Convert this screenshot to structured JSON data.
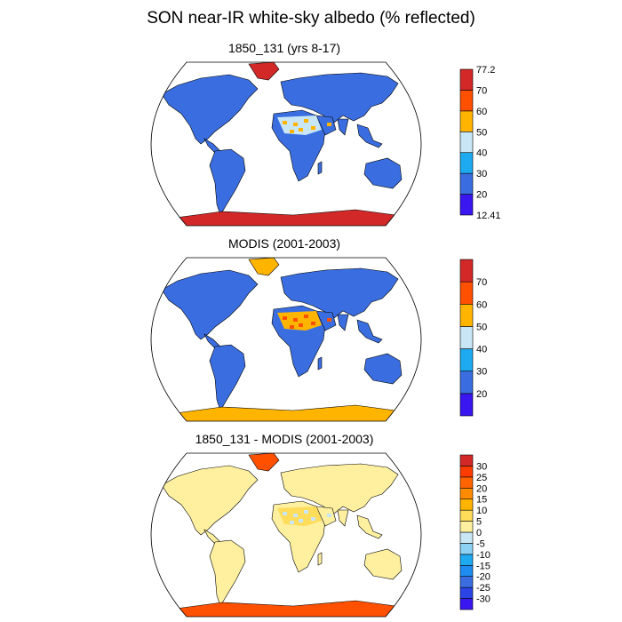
{
  "title": "SON near-IR white-sky albedo (% reflected)",
  "panels": [
    {
      "title": "1850_131 (yrs 8-17)",
      "colorbar": {
        "colors": [
          "#3a16f0",
          "#3a6ee0",
          "#1eaaf0",
          "#c8e6f5",
          "#ffb400",
          "#ff5000",
          "#d22828"
        ],
        "labels": [
          "12.41",
          "20",
          "30",
          "40",
          "50",
          "60",
          "70",
          "77.2"
        ]
      },
      "fills": {
        "land": "#3a6ee0",
        "high": "#d22828",
        "desert": "#c8e6f5",
        "desertSpots": "#ffb400"
      }
    },
    {
      "title": "MODIS (2001-2003)",
      "colorbar": {
        "colors": [
          "#3a16f0",
          "#3a6ee0",
          "#1eaaf0",
          "#c8e6f5",
          "#ffb400",
          "#ff5000",
          "#d22828"
        ],
        "labels": [
          "20",
          "30",
          "40",
          "50",
          "60",
          "70"
        ]
      },
      "fills": {
        "land": "#3a6ee0",
        "high": "#ffb400",
        "desert": "#ffb400",
        "desertSpots": "#ff5000"
      }
    },
    {
      "title": "1850_131 - MODIS (2001-2003)",
      "colorbar": {
        "colors": [
          "#3a16f0",
          "#2a44e6",
          "#3a6ee0",
          "#1e8cf0",
          "#1eaaf0",
          "#8cd2f5",
          "#c8e6f5",
          "#fff0a0",
          "#ffdc5a",
          "#ffb400",
          "#ff8c00",
          "#ff6400",
          "#ff3c00",
          "#d22828"
        ],
        "labels": [
          "-30",
          "-25",
          "-20",
          "-15",
          "-10",
          "-5",
          "0",
          "5",
          "10",
          "15",
          "20",
          "25",
          "30"
        ]
      },
      "fills": {
        "land": "#fff0a0",
        "high": "#ff5000",
        "desert": "#ffdc5a",
        "desertSpots": "#c8e6f5"
      }
    }
  ]
}
